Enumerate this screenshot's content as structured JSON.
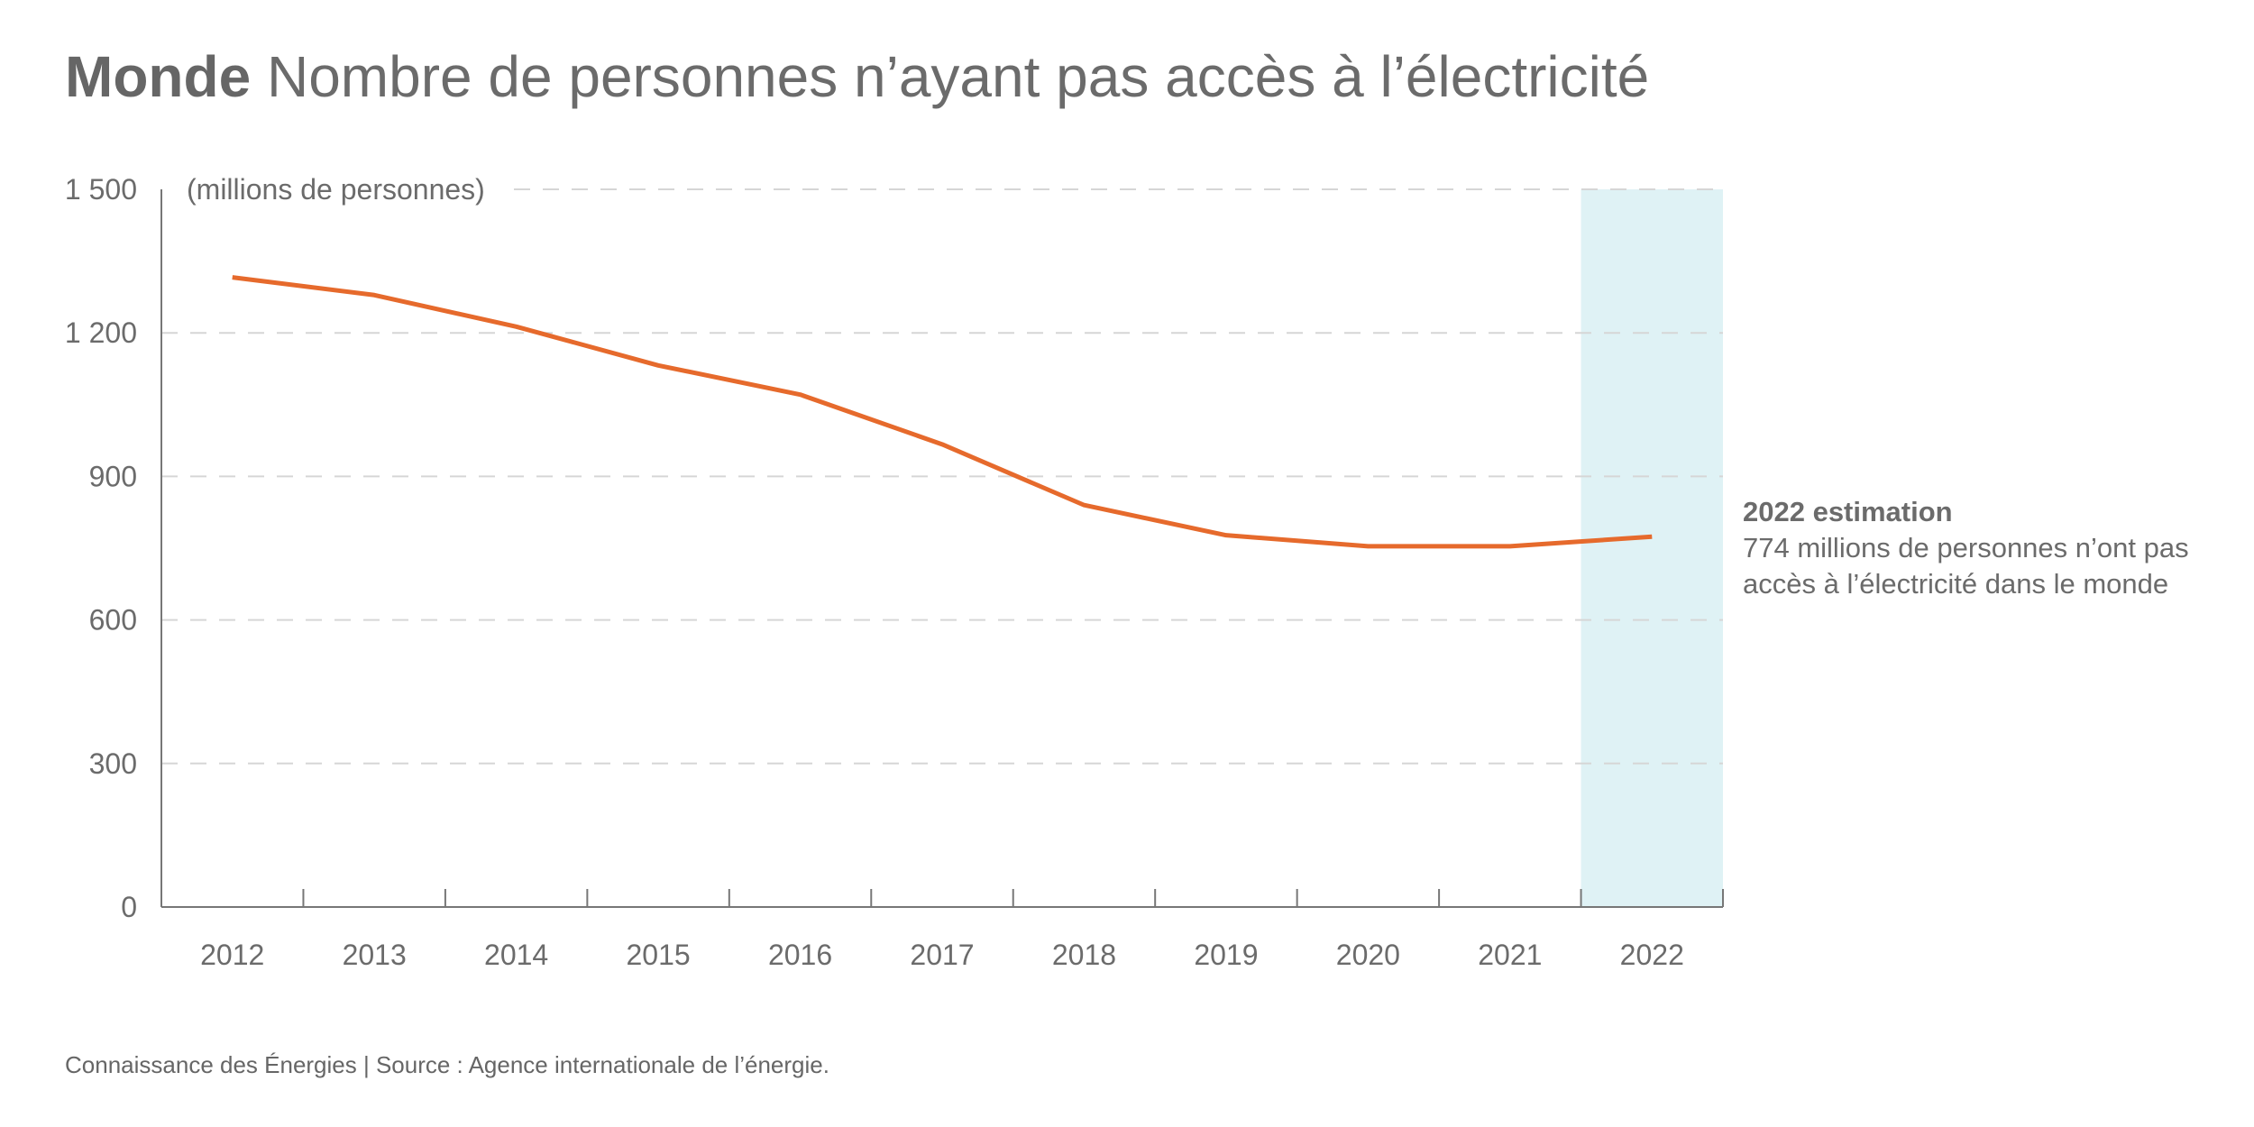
{
  "title": {
    "bold": "Monde",
    "rest": "Nombre de personnes n’ayant pas accès à l’électricité"
  },
  "annotation": {
    "heading": "2022 estimation",
    "line1": "774 millions de personnes n’ont pas",
    "line2": "accès à l’électricité dans le monde"
  },
  "footer": "Connaissance des Énergies | Source : Agence internationale de l’énergie.",
  "chart_data": {
    "type": "line",
    "title": "Nombre de personnes n’ayant pas accès à l’électricité",
    "ylabel": "(millions de personnes)",
    "xlabel": "",
    "categories": [
      "2012",
      "2013",
      "2014",
      "2015",
      "2016",
      "2017",
      "2018",
      "2019",
      "2020",
      "2021",
      "2022"
    ],
    "values": [
      1316,
      1279,
      1213,
      1132,
      1071,
      967,
      840,
      777,
      754,
      754,
      774
    ],
    "ylim": [
      0,
      1500
    ],
    "yticks": [
      0,
      300,
      600,
      900,
      1200,
      1500
    ],
    "ytick_labels": [
      "0",
      "300",
      "600",
      "900",
      "1 200",
      "1 500"
    ],
    "grid": "horizontal dashed",
    "highlight": {
      "category": "2022",
      "color": "#dff2f5"
    },
    "line_color": "#e66a2c"
  }
}
